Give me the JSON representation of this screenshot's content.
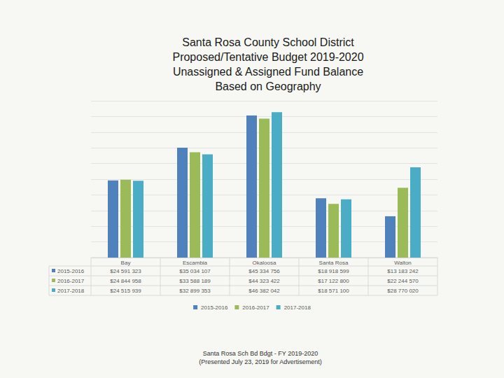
{
  "chart_data": {
    "type": "bar",
    "title": "Santa Rosa County School District\nProposed/Tentative Budget 2019-2020\nUnassigned & Assigned Fund Balance\nBased on Geography",
    "categories": [
      "Bay",
      "Escambia",
      "Okaloosa",
      "Santa Rosa",
      "Walton"
    ],
    "series": [
      {
        "name": "2015-2016",
        "color": "#4f81bd",
        "values": [
          24591323,
          35034107,
          45334756,
          18918599,
          13183242
        ],
        "value_labels": [
          "$24 591 323",
          "$35 034 107",
          "$45 334 756",
          "$18 918 599",
          "$13 183 242"
        ]
      },
      {
        "name": "2016-2017",
        "color": "#9bbb59",
        "values": [
          24844958,
          33588189,
          44323422,
          17122800,
          22244570
        ],
        "value_labels": [
          "$24 844 958",
          "$33 588 189",
          "$44 323 422",
          "$17 122 800",
          "$22 244 570"
        ]
      },
      {
        "name": "2017-2018",
        "color": "#4bacc6",
        "values": [
          24515939,
          32899353,
          46382042,
          18571100,
          28770020
        ],
        "value_labels": [
          "$24 515 939",
          "$32 899 353",
          "$46 382 042",
          "$18 571 100",
          "$28 770 020"
        ]
      }
    ],
    "ylim": [
      0,
      50000000
    ],
    "yticks": [
      0,
      5000000,
      10000000,
      15000000,
      20000000,
      25000000,
      30000000,
      35000000,
      40000000,
      45000000,
      50000000
    ],
    "grid": true,
    "tick_labels": "x",
    "legend": "bottom",
    "footer": [
      "Santa Rosa Sch Bd Bdgt - FY 2019-2020",
      "(Presented July 23, 2019 for Advertisement)"
    ]
  }
}
